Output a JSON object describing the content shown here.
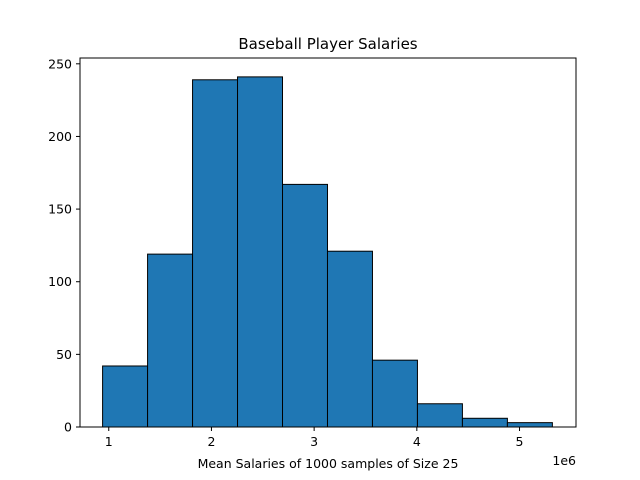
{
  "chart_data": {
    "type": "bar",
    "title": "Baseball Player Salaries",
    "xlabel": "Mean Salaries of 1000 samples of Size 25",
    "ylabel": "",
    "x_offset_label": "1e6",
    "bar_color": "#1f77b4",
    "edge_color": "#000000",
    "grid": false,
    "legend": "none",
    "xlim": [
      0.72,
      5.55
    ],
    "ylim": [
      0,
      254
    ],
    "xticks": [
      1,
      2,
      3,
      4,
      5
    ],
    "xtick_labels": [
      "1",
      "2",
      "3",
      "4",
      "5"
    ],
    "yticks": [
      0,
      50,
      100,
      150,
      200,
      250
    ],
    "ytick_labels": [
      "0",
      "50",
      "100",
      "150",
      "200",
      "250"
    ],
    "bin_edges": [
      0.94,
      1.378,
      1.816,
      2.254,
      2.692,
      3.13,
      3.568,
      4.006,
      4.444,
      4.882,
      5.32
    ],
    "counts": [
      42,
      119,
      239,
      241,
      167,
      121,
      46,
      16,
      6,
      3
    ]
  }
}
